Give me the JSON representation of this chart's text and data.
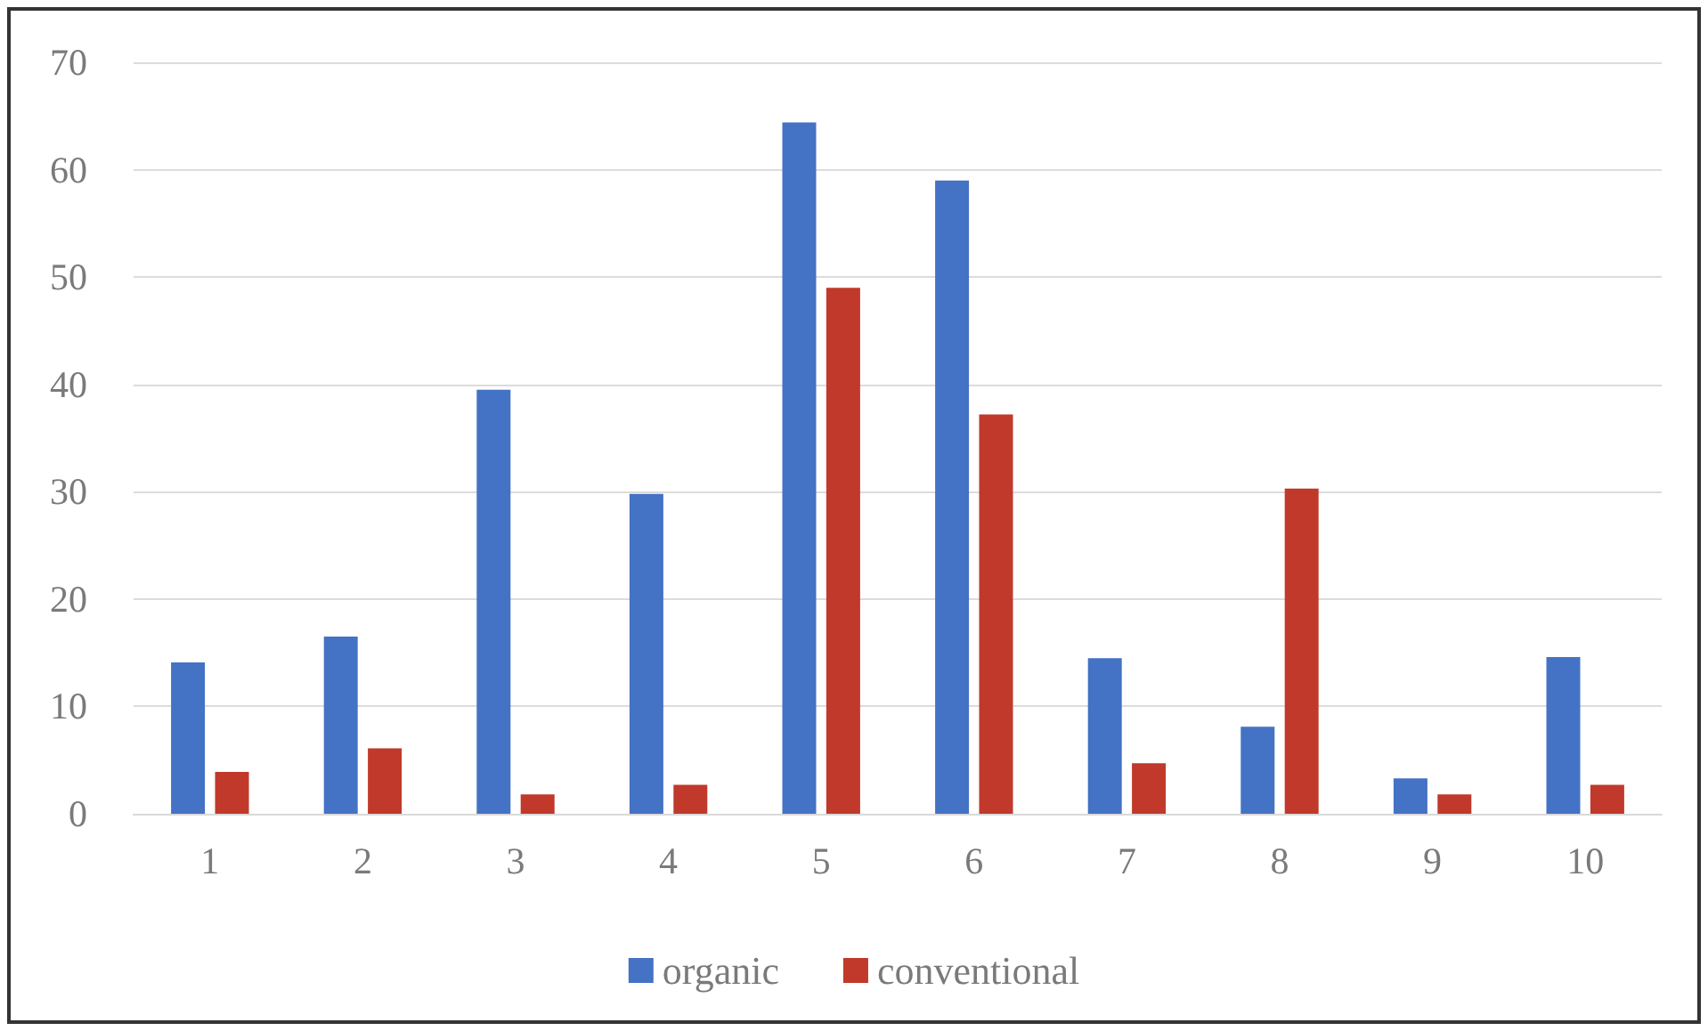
{
  "chart_data": {
    "type": "bar",
    "categories": [
      "1",
      "2",
      "3",
      "4",
      "5",
      "6",
      "7",
      "8",
      "9",
      "10"
    ],
    "series": [
      {
        "name": "organic",
        "color": "#4472c4",
        "values": [
          14.1,
          16.5,
          39.5,
          29.8,
          64.4,
          59.0,
          14.5,
          8.1,
          3.3,
          14.6
        ]
      },
      {
        "name": "conventional",
        "color": "#c0392b",
        "values": [
          3.9,
          6.1,
          1.8,
          2.7,
          49.0,
          37.2,
          4.7,
          30.3,
          1.8,
          2.7
        ]
      }
    ],
    "ylim": [
      0,
      70
    ],
    "yticks": [
      0,
      10,
      20,
      30,
      40,
      50,
      60,
      70
    ],
    "grid": "y",
    "legend": "bottom"
  }
}
